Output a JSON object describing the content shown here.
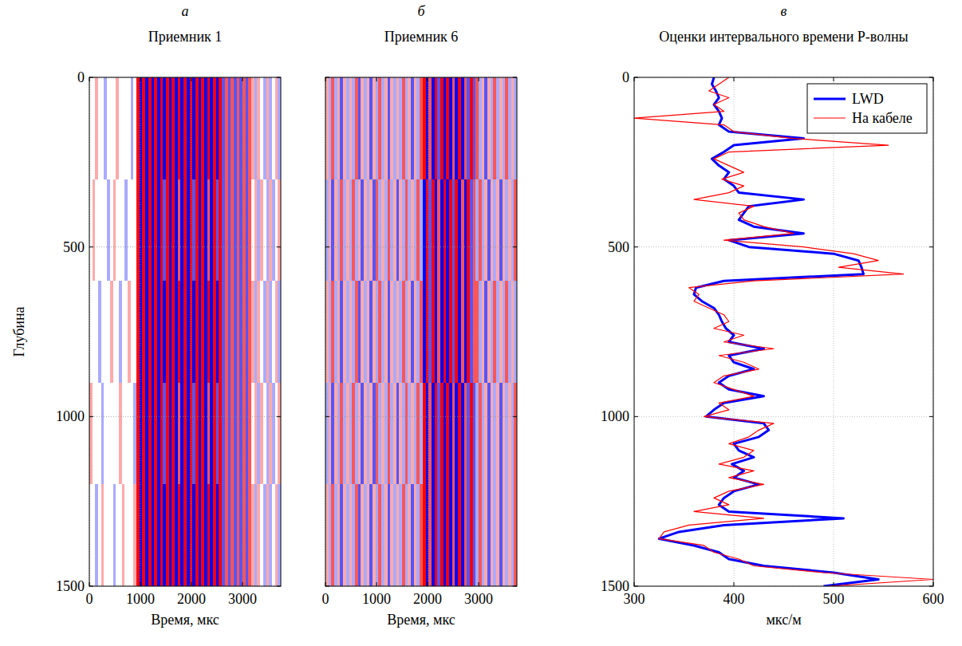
{
  "chart_data": [
    {
      "type": "heatmap",
      "panel_label": "а",
      "title": "Приемник 1",
      "x_label": "Время, мкс",
      "y_label": "Глубина",
      "xlim": [
        0,
        3750
      ],
      "ylim": [
        1500,
        0
      ],
      "xticks": [
        0,
        1000,
        2000,
        3000
      ],
      "yticks": [
        0,
        500,
        1000,
        1500
      ],
      "grid": true,
      "zlim": [
        -3,
        3
      ],
      "cells": [
        [
          0,
          0,
          1,
          0,
          0,
          -1,
          0,
          0,
          0,
          1,
          0,
          0,
          0,
          0,
          -1,
          0,
          3,
          -3,
          3,
          -3,
          3,
          -3,
          3,
          -3,
          3,
          -3,
          3,
          -3,
          3,
          -3,
          3,
          -3,
          3,
          -3,
          3,
          -3,
          3,
          -3,
          3,
          -3,
          3,
          -3,
          3,
          -3,
          3,
          -2,
          2,
          -2,
          2,
          -2,
          2,
          -2,
          2,
          -2,
          2,
          1,
          -1,
          1,
          0,
          -1,
          1,
          -1,
          0,
          1,
          -1
        ],
        [
          0,
          1,
          0,
          0,
          0,
          0,
          -1,
          0,
          1,
          0,
          0,
          0,
          -1,
          0,
          0,
          0,
          3,
          -3,
          3,
          -3,
          3,
          -3,
          3,
          -3,
          3,
          -2,
          3,
          -3,
          3,
          -3,
          2,
          -3,
          3,
          -3,
          3,
          -2,
          3,
          -3,
          3,
          -3,
          2,
          -3,
          3,
          -2,
          3,
          -2,
          2,
          -2,
          2,
          -2,
          2,
          -2,
          2,
          -2,
          2,
          0,
          1,
          -1,
          1,
          0,
          -1,
          1,
          -1,
          0,
          1
        ],
        [
          0,
          0,
          0,
          -1,
          0,
          0,
          0,
          1,
          0,
          0,
          -1,
          0,
          0,
          1,
          0,
          0,
          3,
          -3,
          3,
          -3,
          3,
          -3,
          3,
          -3,
          3,
          -3,
          3,
          -3,
          3,
          -3,
          3,
          -3,
          3,
          -3,
          3,
          -3,
          3,
          -3,
          3,
          -3,
          3,
          -3,
          3,
          -3,
          3,
          -2,
          2,
          -2,
          2,
          -2,
          2,
          -2,
          2,
          -2,
          2,
          1,
          -1,
          1,
          0,
          -1,
          1,
          -1,
          0,
          1,
          -1
        ],
        [
          1,
          0,
          0,
          0,
          -1,
          0,
          0,
          0,
          0,
          0,
          1,
          0,
          0,
          0,
          0,
          -1,
          3,
          -3,
          3,
          -3,
          3,
          -3,
          3,
          -3,
          3,
          -2,
          3,
          -3,
          3,
          -3,
          2,
          -3,
          3,
          -3,
          3,
          -2,
          3,
          -3,
          3,
          -3,
          2,
          -3,
          3,
          -2,
          3,
          -2,
          2,
          -2,
          2,
          -2,
          2,
          -2,
          2,
          -2,
          2,
          0,
          1,
          -1,
          1,
          0,
          -1,
          1,
          -1,
          0,
          1
        ],
        [
          0,
          0,
          -1,
          0,
          1,
          0,
          0,
          0,
          -1,
          0,
          0,
          1,
          0,
          0,
          0,
          1,
          3,
          -3,
          3,
          -3,
          3,
          -3,
          3,
          -3,
          3,
          -3,
          3,
          -3,
          3,
          -3,
          3,
          -3,
          3,
          -3,
          3,
          -3,
          3,
          -3,
          3,
          -3,
          3,
          -3,
          3,
          -3,
          3,
          -2,
          2,
          -2,
          2,
          -2,
          2,
          -2,
          2,
          -2,
          2,
          1,
          -1,
          1,
          0,
          -1,
          1,
          -1,
          0,
          1,
          -1
        ]
      ]
    },
    {
      "type": "heatmap",
      "panel_label": "б",
      "title": "Приемник 6",
      "x_label": "Время, мкс",
      "xlim": [
        0,
        3750
      ],
      "ylim": [
        1500,
        0
      ],
      "xticks": [
        0,
        1000,
        2000,
        3000
      ],
      "yticks": [
        0,
        500,
        1000,
        1500
      ],
      "grid": true,
      "tick_labels": "x",
      "zlim": [
        -3,
        3
      ],
      "cells": [
        [
          1,
          -1,
          2,
          -1,
          1,
          -2,
          1,
          -1,
          1,
          -1,
          2,
          -2,
          1,
          -1,
          1,
          -2,
          1,
          -1,
          2,
          -1,
          1,
          -2,
          1,
          -1,
          1,
          -1,
          2,
          -1,
          1,
          -2,
          1,
          -1,
          2,
          3,
          -3,
          2,
          -3,
          3,
          -2,
          3,
          -3,
          3,
          -3,
          2,
          -3,
          3,
          -3,
          2,
          -2,
          3,
          -2,
          2,
          -1,
          1,
          -2,
          1,
          -1,
          2,
          -1,
          1,
          -1,
          2,
          -1,
          1,
          -1
        ],
        [
          -1,
          1,
          -2,
          1,
          -1,
          2,
          -1,
          1,
          -1,
          2,
          -1,
          1,
          -2,
          1,
          -1,
          1,
          -2,
          2,
          -1,
          1,
          -1,
          2,
          -1,
          1,
          -2,
          1,
          -1,
          2,
          -1,
          1,
          -1,
          2,
          -1,
          -3,
          3,
          -2,
          3,
          -3,
          2,
          -3,
          3,
          -3,
          3,
          -2,
          3,
          -3,
          2,
          -3,
          3,
          -2,
          2,
          -1,
          2,
          -1,
          1,
          -2,
          1,
          -1,
          1,
          -2,
          1,
          -1,
          1,
          -1,
          2
        ],
        [
          1,
          -1,
          2,
          -1,
          1,
          -2,
          1,
          -1,
          1,
          -1,
          2,
          -2,
          1,
          -1,
          1,
          -2,
          1,
          -1,
          2,
          -1,
          1,
          -2,
          1,
          -1,
          1,
          -1,
          2,
          -1,
          1,
          -2,
          1,
          -1,
          2,
          -3,
          3,
          -2,
          3,
          -3,
          2,
          -3,
          3,
          -3,
          3,
          -2,
          3,
          -3,
          2,
          -3,
          3,
          -2,
          2,
          2,
          -1,
          1,
          -2,
          1,
          -1,
          2,
          -1,
          1,
          -1,
          2,
          -1,
          1,
          -1
        ],
        [
          -1,
          1,
          -2,
          1,
          -1,
          2,
          -1,
          1,
          -1,
          2,
          -1,
          1,
          -2,
          1,
          -1,
          1,
          -2,
          2,
          -1,
          1,
          -1,
          2,
          -1,
          1,
          -2,
          1,
          -1,
          2,
          -1,
          1,
          -1,
          2,
          -1,
          3,
          -3,
          2,
          -3,
          3,
          -2,
          3,
          -3,
          3,
          -3,
          2,
          -3,
          3,
          -3,
          2,
          -2,
          3,
          -2,
          -1,
          2,
          -1,
          1,
          -2,
          1,
          -1,
          1,
          -2,
          1,
          -1,
          1,
          -1,
          2
        ],
        [
          1,
          -1,
          2,
          -1,
          1,
          -2,
          1,
          -1,
          1,
          -1,
          2,
          -2,
          1,
          -1,
          1,
          -2,
          1,
          -1,
          2,
          -1,
          1,
          -2,
          1,
          -1,
          1,
          -1,
          2,
          -1,
          1,
          -2,
          1,
          -1,
          2,
          3,
          -3,
          2,
          -3,
          3,
          -2,
          3,
          -3,
          3,
          -3,
          2,
          -3,
          3,
          -3,
          2,
          -2,
          3,
          -2,
          -1,
          2,
          -1,
          1,
          -2,
          1,
          -1,
          1,
          -2,
          1,
          -1,
          1,
          -1,
          2
        ]
      ]
    },
    {
      "type": "line",
      "panel_label": "в",
      "title": "Оценки интервального времени Р-волны",
      "x_label": "мкс/м",
      "xlim": [
        300,
        600
      ],
      "ylim": [
        1500,
        0
      ],
      "xticks": [
        300,
        400,
        500,
        600
      ],
      "yticks": [
        0,
        500,
        1000,
        1500
      ],
      "grid": true,
      "legend": "upper right",
      "y": [
        0,
        20,
        40,
        60,
        80,
        100,
        120,
        140,
        160,
        180,
        200,
        220,
        240,
        260,
        280,
        300,
        320,
        340,
        360,
        380,
        400,
        420,
        440,
        460,
        480,
        500,
        520,
        540,
        560,
        580,
        600,
        620,
        640,
        660,
        680,
        700,
        720,
        740,
        760,
        780,
        800,
        820,
        840,
        860,
        880,
        900,
        920,
        940,
        960,
        980,
        1000,
        1020,
        1040,
        1060,
        1080,
        1100,
        1120,
        1140,
        1160,
        1180,
        1200,
        1220,
        1240,
        1260,
        1280,
        1300,
        1320,
        1340,
        1360,
        1380,
        1400,
        1420,
        1440,
        1460,
        1480,
        1500
      ],
      "series": [
        {
          "name": "LWD",
          "color": "#0000ff",
          "line_style": "solid",
          "values": [
            380,
            378,
            382,
            385,
            380,
            385,
            388,
            385,
            395,
            470,
            400,
            390,
            378,
            385,
            395,
            390,
            400,
            405,
            470,
            415,
            410,
            405,
            420,
            470,
            395,
            415,
            500,
            525,
            528,
            530,
            390,
            362,
            360,
            368,
            380,
            385,
            388,
            392,
            400,
            395,
            430,
            395,
            400,
            420,
            395,
            385,
            395,
            430,
            390,
            380,
            372,
            430,
            435,
            425,
            400,
            405,
            420,
            398,
            410,
            400,
            425,
            400,
            390,
            385,
            395,
            510,
            390,
            345,
            325,
            360,
            385,
            395,
            430,
            500,
            545,
            490
          ]
        },
        {
          "name": "На кабеле",
          "color": "#ff0000",
          "line_style": "solid",
          "values": [
            395,
            385,
            375,
            395,
            380,
            390,
            300,
            390,
            400,
            460,
            555,
            395,
            380,
            395,
            410,
            388,
            410,
            395,
            360,
            420,
            405,
            410,
            430,
            460,
            390,
            470,
            520,
            545,
            505,
            570,
            420,
            355,
            365,
            360,
            375,
            390,
            395,
            380,
            410,
            390,
            440,
            385,
            410,
            425,
            390,
            380,
            400,
            420,
            385,
            395,
            370,
            440,
            425,
            415,
            395,
            420,
            410,
            385,
            420,
            395,
            430,
            395,
            380,
            395,
            360,
            430,
            355,
            330,
            325,
            370,
            380,
            405,
            420,
            490,
            600,
            495
          ]
        }
      ]
    }
  ]
}
